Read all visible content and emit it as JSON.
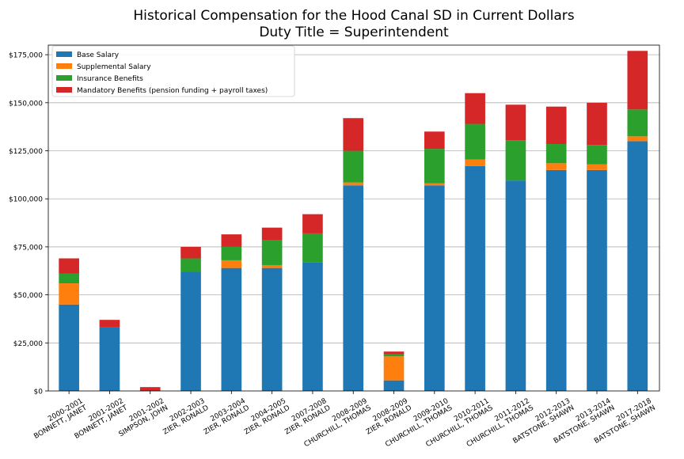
{
  "chart_data": {
    "type": "bar",
    "stacked": true,
    "title": "Historical Compensation for the Hood Canal SD in Current Dollars",
    "subtitle": "Duty Title = Superintendent",
    "xlabel": "",
    "ylabel": "",
    "ylim": [
      0,
      180000
    ],
    "yticks": [
      "$0",
      "$25,000",
      "$50,000",
      "$75,000",
      "$100,000",
      "$125,000",
      "$150,000",
      "$175,000"
    ],
    "ytick_values": [
      0,
      25000,
      50000,
      75000,
      100000,
      125000,
      150000,
      175000
    ],
    "grid": "horizontal",
    "legend_position": "top-left",
    "categories": [
      [
        "2000-2001",
        "BONNETT, JANET"
      ],
      [
        "2001-2002",
        "BONNETT, JANET"
      ],
      [
        "2001-2002",
        "SIMPSON, JOHN"
      ],
      [
        "2002-2003",
        "ZIER, RONALD"
      ],
      [
        "2003-2004",
        "ZIER, RONALD"
      ],
      [
        "2004-2005",
        "ZIER, RONALD"
      ],
      [
        "2007-2008",
        "ZIER, RONALD"
      ],
      [
        "2008-2009",
        "CHURCHILL, THOMAS"
      ],
      [
        "2008-2009",
        "ZIER, RONALD"
      ],
      [
        "2009-2010",
        "CHURCHILL, THOMAS"
      ],
      [
        "2010-2011",
        "CHURCHILL, THOMAS"
      ],
      [
        "2011-2012",
        "CHURCHILL, THOMAS"
      ],
      [
        "2012-2013",
        "BATSTONE, SHAWN"
      ],
      [
        "2013-2014",
        "BATSTONE, SHAWN"
      ],
      [
        "2017-2018",
        "BATSTONE, SHAWN"
      ]
    ],
    "series": [
      {
        "name": "Base Salary",
        "color": "#1f77b4",
        "values": [
          45000,
          33000,
          0,
          62000,
          64000,
          64000,
          67000,
          107000,
          5500,
          107000,
          117000,
          109500,
          115000,
          115000,
          130000
        ]
      },
      {
        "name": "Supplemental Salary",
        "color": "#ff7f0e",
        "values": [
          11000,
          0,
          0,
          0,
          4000,
          1500,
          0,
          1500,
          12500,
          1000,
          3500,
          0,
          3500,
          3000,
          2500
        ]
      },
      {
        "name": "Insurance Benefits",
        "color": "#2ca02c",
        "values": [
          5000,
          0,
          0,
          7000,
          7000,
          13000,
          15000,
          16500,
          1000,
          18000,
          18500,
          21000,
          10000,
          10000,
          14000
        ]
      },
      {
        "name": "Mandatory Benefits (pension funding + payroll taxes)",
        "color": "#d62728",
        "values": [
          8000,
          4000,
          2000,
          6000,
          6500,
          6500,
          10000,
          17000,
          1500,
          9000,
          16000,
          18500,
          19500,
          22000,
          30500
        ]
      }
    ]
  }
}
